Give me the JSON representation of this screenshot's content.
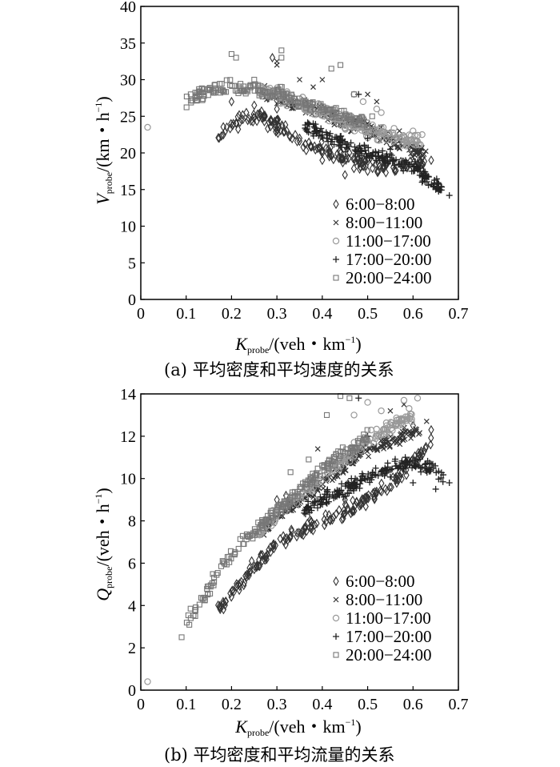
{
  "chart_data": [
    {
      "type": "scatter",
      "caption": "(a) 平均密度和平均速度的关系",
      "xlabel": "K",
      "xlabel_sub": "probe",
      "xlabel_unit": "/(veh・km",
      "xlabel_sup": "−1",
      "xlabel_close": ")",
      "ylabel": "V",
      "ylabel_sub": "probe",
      "ylabel_unit": "/(km・h",
      "ylabel_sup": "−1",
      "ylabel_close": ")",
      "xlim": [
        0,
        0.7
      ],
      "ylim": [
        0,
        40
      ],
      "xticks": [
        "0",
        "0.1",
        "0.2",
        "0.3",
        "0.4",
        "0.5",
        "0.6",
        "0.7"
      ],
      "yticks": [
        "0",
        "5",
        "10",
        "15",
        "20",
        "25",
        "30",
        "35",
        "40"
      ],
      "legend_position": "bottom-right",
      "series": [
        {
          "name": "6:00−8:00",
          "marker": "diamond",
          "color": "#333333",
          "trend": [
            [
              0.17,
              22.5
            ],
            [
              0.22,
              24.5
            ],
            [
              0.27,
              24.8
            ],
            [
              0.32,
              23
            ],
            [
              0.37,
              21
            ],
            [
              0.42,
              20
            ],
            [
              0.47,
              18.8
            ],
            [
              0.52,
              18.3
            ],
            [
              0.57,
              18.2
            ],
            [
              0.63,
              18.5
            ]
          ],
          "points": [
            [
              0.2,
              27
            ],
            [
              0.25,
              26.5
            ],
            [
              0.28,
              27.5
            ],
            [
              0.29,
              33
            ],
            [
              0.3,
              26
            ],
            [
              0.35,
              22
            ],
            [
              0.4,
              19
            ],
            [
              0.45,
              17
            ],
            [
              0.5,
              17.5
            ],
            [
              0.56,
              17.5
            ],
            [
              0.6,
              18
            ],
            [
              0.64,
              19
            ]
          ]
        },
        {
          "name": "8:00−11:00",
          "marker": "x",
          "color": "#333333",
          "trend": [
            [
              0.27,
              28.5
            ],
            [
              0.32,
              27
            ],
            [
              0.37,
              26
            ],
            [
              0.42,
              25
            ],
            [
              0.47,
              24
            ],
            [
              0.52,
              23
            ],
            [
              0.56,
              21.5
            ],
            [
              0.6,
              20.5
            ],
            [
              0.63,
              19.5
            ]
          ],
          "points": [
            [
              0.3,
              32
            ],
            [
              0.3,
              32.5
            ],
            [
              0.35,
              30
            ],
            [
              0.38,
              29
            ],
            [
              0.4,
              30
            ],
            [
              0.5,
              28
            ],
            [
              0.52,
              27
            ],
            [
              0.57,
              23
            ],
            [
              0.62,
              17
            ]
          ]
        },
        {
          "name": "11:00−17:00",
          "marker": "circle",
          "color": "#999999",
          "trend": [
            [
              0.26,
              29
            ],
            [
              0.3,
              28
            ],
            [
              0.34,
              27
            ],
            [
              0.38,
              26
            ],
            [
              0.42,
              25
            ],
            [
              0.46,
              24
            ],
            [
              0.5,
              23
            ],
            [
              0.54,
              22.5
            ],
            [
              0.58,
              22
            ],
            [
              0.62,
              21.5
            ]
          ],
          "points": [
            [
              0.015,
              23.5
            ],
            [
              0.47,
              28
            ],
            [
              0.49,
              27
            ],
            [
              0.52,
              26
            ],
            [
              0.53,
              25.5
            ],
            [
              0.6,
              23
            ],
            [
              0.62,
              22.5
            ]
          ]
        },
        {
          "name": "17:00−20:00",
          "marker": "plus",
          "color": "#222222",
          "trend": [
            [
              0.36,
              23.5
            ],
            [
              0.4,
              22.5
            ],
            [
              0.45,
              21
            ],
            [
              0.5,
              20
            ],
            [
              0.55,
              19
            ],
            [
              0.6,
              18
            ],
            [
              0.64,
              16
            ],
            [
              0.67,
              14.8
            ]
          ],
          "points": [
            [
              0.38,
              24
            ],
            [
              0.48,
              28
            ],
            [
              0.5,
              22
            ],
            [
              0.55,
              20.5
            ],
            [
              0.62,
              16
            ],
            [
              0.65,
              15
            ],
            [
              0.68,
              14.2
            ]
          ]
        },
        {
          "name": "20:00−24:00",
          "marker": "square",
          "color": "#777777",
          "trend": [
            [
              0.1,
              27
            ],
            [
              0.15,
              28.5
            ],
            [
              0.2,
              29
            ],
            [
              0.25,
              28.5
            ],
            [
              0.3,
              28
            ],
            [
              0.35,
              27
            ],
            [
              0.4,
              26
            ],
            [
              0.45,
              25
            ],
            [
              0.5,
              24
            ]
          ],
          "points": [
            [
              0.11,
              28
            ],
            [
              0.12,
              27.5
            ],
            [
              0.2,
              33.5
            ],
            [
              0.21,
              33
            ],
            [
              0.31,
              33
            ],
            [
              0.31,
              34
            ],
            [
              0.25,
              30
            ],
            [
              0.42,
              31.5
            ],
            [
              0.44,
              32
            ],
            [
              0.47,
              28
            ],
            [
              0.51,
              25
            ]
          ]
        }
      ]
    },
    {
      "type": "scatter",
      "caption": "(b) 平均密度和平均流量的关系",
      "xlabel": "K",
      "xlabel_sub": "probe",
      "xlabel_unit": "/(veh・km",
      "xlabel_sup": "−1",
      "xlabel_close": ")",
      "ylabel": "Q",
      "ylabel_sub": "probe",
      "ylabel_unit": "/(veh・h",
      "ylabel_sup": "−1",
      "ylabel_close": ")",
      "xlim": [
        0,
        0.7
      ],
      "ylim": [
        0,
        14
      ],
      "xticks": [
        "0",
        "0.1",
        "0.2",
        "0.3",
        "0.4",
        "0.5",
        "0.6",
        "0.7"
      ],
      "yticks": [
        "0",
        "2",
        "4",
        "6",
        "8",
        "10",
        "12",
        "14"
      ],
      "legend_position": "bottom-right",
      "series": [
        {
          "name": "6:00−8:00",
          "marker": "diamond",
          "color": "#333333",
          "trend": [
            [
              0.17,
              3.8
            ],
            [
              0.2,
              4.6
            ],
            [
              0.25,
              5.9
            ],
            [
              0.3,
              6.9
            ],
            [
              0.35,
              7.5
            ],
            [
              0.4,
              8
            ],
            [
              0.45,
              8.4
            ],
            [
              0.5,
              9
            ],
            [
              0.55,
              9.8
            ],
            [
              0.6,
              10.8
            ],
            [
              0.64,
              11.8
            ]
          ],
          "points": [
            [
              0.3,
              9
            ],
            [
              0.32,
              9.2
            ],
            [
              0.38,
              9.6
            ],
            [
              0.45,
              9
            ],
            [
              0.6,
              12.5
            ],
            [
              0.64,
              12.3
            ]
          ]
        },
        {
          "name": "8:00−11:00",
          "marker": "x",
          "color": "#333333",
          "trend": [
            [
              0.27,
              7.5
            ],
            [
              0.32,
              8.5
            ],
            [
              0.37,
              9.3
            ],
            [
              0.42,
              10
            ],
            [
              0.47,
              11
            ],
            [
              0.52,
              11.5
            ],
            [
              0.57,
              12
            ],
            [
              0.62,
              12.2
            ]
          ],
          "points": [
            [
              0.39,
              11.4
            ],
            [
              0.55,
              13.2
            ],
            [
              0.58,
              13.5
            ],
            [
              0.63,
              12.7
            ]
          ]
        },
        {
          "name": "11:00−17:00",
          "marker": "circle",
          "color": "#999999",
          "trend": [
            [
              0.26,
              7.5
            ],
            [
              0.3,
              8.4
            ],
            [
              0.35,
              9.2
            ],
            [
              0.4,
              10
            ],
            [
              0.45,
              11
            ],
            [
              0.5,
              11.8
            ],
            [
              0.55,
              12.5
            ],
            [
              0.6,
              13
            ]
          ],
          "points": [
            [
              0.015,
              0.4
            ],
            [
              0.47,
              13
            ],
            [
              0.5,
              13.6
            ],
            [
              0.53,
              13.2
            ],
            [
              0.58,
              13.7
            ],
            [
              0.61,
              13.8
            ]
          ]
        },
        {
          "name": "17:00−20:00",
          "marker": "plus",
          "color": "#222222",
          "trend": [
            [
              0.36,
              8.5
            ],
            [
              0.4,
              9
            ],
            [
              0.45,
              9.5
            ],
            [
              0.5,
              10
            ],
            [
              0.55,
              10.5
            ],
            [
              0.6,
              10.8
            ],
            [
              0.64,
              10.5
            ],
            [
              0.67,
              10
            ]
          ],
          "points": [
            [
              0.48,
              13.8
            ],
            [
              0.5,
              12
            ],
            [
              0.6,
              9.8
            ],
            [
              0.65,
              9.5
            ],
            [
              0.68,
              9.8
            ]
          ]
        },
        {
          "name": "20:00−24:00",
          "marker": "square",
          "color": "#777777",
          "trend": [
            [
              0.1,
              3.2
            ],
            [
              0.13,
              4
            ],
            [
              0.16,
              5.2
            ],
            [
              0.2,
              6.4
            ],
            [
              0.25,
              7.5
            ],
            [
              0.3,
              8.5
            ],
            [
              0.35,
              9.4
            ],
            [
              0.4,
              10.4
            ],
            [
              0.45,
              11.3
            ],
            [
              0.5,
              12
            ]
          ],
          "points": [
            [
              0.09,
              2.5
            ],
            [
              0.11,
              3.4
            ],
            [
              0.12,
              3.5
            ],
            [
              0.41,
              13
            ],
            [
              0.44,
              13.9
            ],
            [
              0.46,
              13.8
            ],
            [
              0.33,
              10.3
            ],
            [
              0.37,
              10.9
            ]
          ]
        }
      ]
    }
  ]
}
